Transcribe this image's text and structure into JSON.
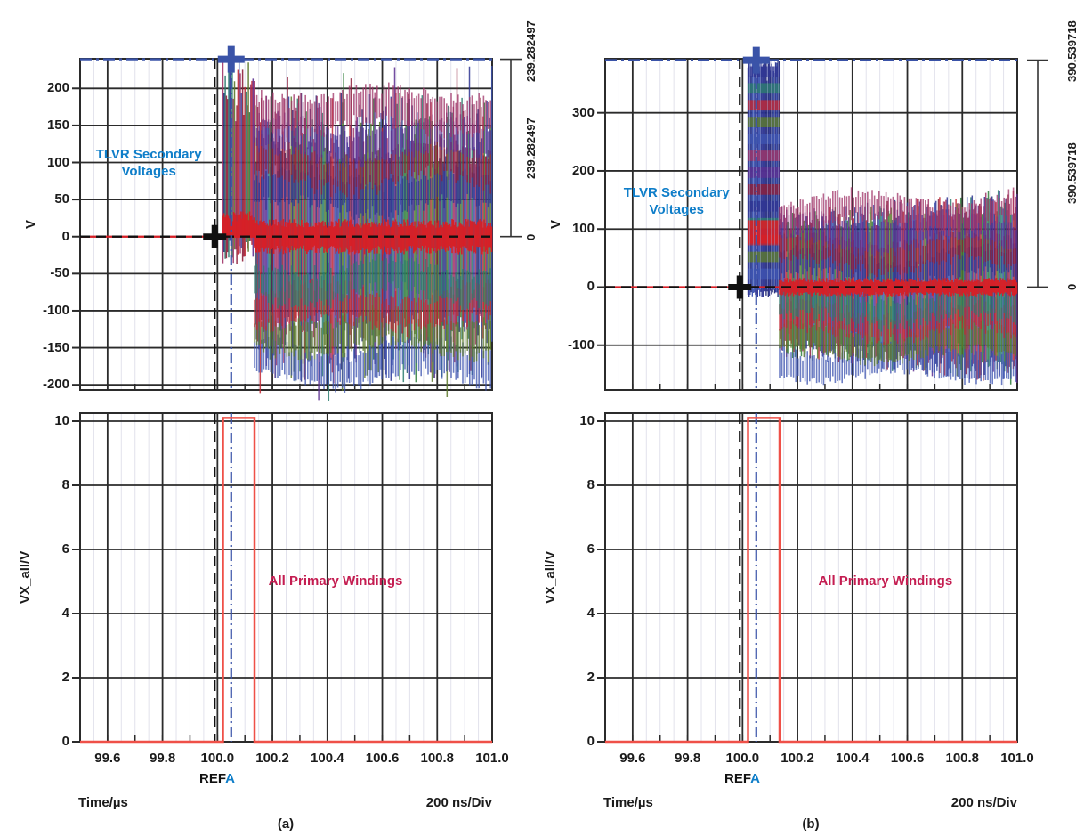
{
  "axis": {
    "time_label": "Time/µs",
    "div_label": "200 ns/Div",
    "ref_black": "REF",
    "ref_blue": "A",
    "x_tick_labels": [
      "99.6",
      "99.8",
      "100.0",
      "100.2",
      "100.4",
      "100.6",
      "100.8",
      "101.0"
    ],
    "x_tick_values": [
      99.6,
      99.8,
      100.0,
      100.2,
      100.4,
      100.6,
      100.8,
      101.0
    ]
  },
  "panels": {
    "a": "(a)",
    "b": "(b)"
  },
  "colors": {
    "blue_text": "#0f7ec9",
    "crimson_text": "#c41d51",
    "cursor_blue": "#3a53a8",
    "cursor_black": "#101010",
    "trace_red": "#d81f26",
    "pulse_red": "#ef5048",
    "grid_major": "#2b2b2b",
    "grid_minor": "#e2e2ec",
    "ruler": "#333333",
    "palette": [
      "#c22834",
      "#8f1f3a",
      "#2e3492",
      "#3d54b0",
      "#232a78",
      "#2c7d6f",
      "#5d7a2c",
      "#5c2f91",
      "#2f7d3a",
      "#a03468"
    ],
    "band_palette": [
      "#3d54b0",
      "#5d7a2c",
      "#c22834",
      "#2c7d6f",
      "#2e3492",
      "#8f1f3a",
      "#5c2f91",
      "#a03468"
    ]
  },
  "chart_data": [
    {
      "id": "a_top",
      "type": "line",
      "panel": "a",
      "ylabel": "V",
      "ytick_values": [
        200,
        150,
        100,
        50,
        0,
        -50,
        -100,
        -150,
        -200
      ],
      "ytick_labels": [
        "200",
        "150",
        "100",
        "50",
        "0",
        "-50",
        "-100",
        "-150",
        "-200"
      ],
      "ylim": [
        -207,
        240
      ],
      "xlim": [
        99.5,
        101.0
      ],
      "x_minor_step": 0.05,
      "annotation": {
        "text": "TLVR Secondary Voltages",
        "x": 99.75,
        "y": 100
      },
      "cursors": {
        "t_ref": 99.99,
        "t_cursor": 100.05,
        "y_ref": 0,
        "y_cursor": 239.282497
      },
      "measure": {
        "cursor_value": "239.282497",
        "delta": "239.282497",
        "ref": "0"
      },
      "waveform": {
        "seed": 7,
        "t_on": 100.02,
        "t_off": 100.135,
        "burst": {
          "top_min": 150,
          "top_max": 236,
          "bot_min": -38,
          "bot_max": -5,
          "red_lo": 0,
          "red_hi": 34
        },
        "steady": {
          "top_start": 198,
          "top_end": 192,
          "bot_start": -200,
          "bot_end": -195,
          "jitter": 0.5,
          "spike_top": 231,
          "spike_bot": -226
        },
        "bands": [
          -170,
          -130,
          -95,
          -60,
          60,
          95,
          130,
          170
        ],
        "zero_band": 24,
        "burst_style": "mottle"
      }
    },
    {
      "id": "b_top",
      "type": "line",
      "panel": "b",
      "ylabel": "V",
      "ytick_values": [
        300,
        200,
        100,
        0,
        -100
      ],
      "ytick_labels": [
        "300",
        "200",
        "100",
        "0",
        "-100"
      ],
      "ylim": [
        -177,
        393
      ],
      "xlim": [
        99.5,
        101.0
      ],
      "x_minor_step": 0.05,
      "annotation": {
        "text": "TLVR Secondary Voltages",
        "x": 99.76,
        "y": 148
      },
      "cursors": {
        "t_ref": 99.99,
        "t_cursor": 100.05,
        "y_ref": 0,
        "y_cursor": 390.539718
      },
      "measure": {
        "cursor_value": "390.539718",
        "delta": "390.539718",
        "ref": "0"
      },
      "waveform": {
        "seed": 13,
        "t_on": 100.02,
        "t_off": 100.135,
        "burst": {
          "top_min": 355,
          "top_max": 389,
          "bot_min": -18,
          "bot_max": -4,
          "red_lo": 75,
          "red_hi": 115
        },
        "steady": {
          "top_start": 130,
          "top_end": 172,
          "bot_start": -120,
          "bot_end": -172,
          "jitter": 0.28,
          "spike_top": 0,
          "spike_bot": 0
        },
        "bands": [
          -130,
          -95,
          -60,
          -35,
          35,
          60,
          95,
          130
        ],
        "zero_band": 16,
        "burst_style": "striped"
      }
    },
    {
      "id": "a_bot",
      "type": "line",
      "panel": "a",
      "ylabel": "VX_all/V",
      "ytick_values": [
        0,
        2,
        4,
        6,
        8,
        10
      ],
      "ytick_labels": [
        "0",
        "2",
        "4",
        "6",
        "8",
        "10"
      ],
      "ylim": [
        0,
        10.25
      ],
      "xlim": [
        99.5,
        101.0
      ],
      "x_minor_step": 0.05,
      "annotation": {
        "text": "All Primary Windings",
        "x": 100.43,
        "y": 5.0
      },
      "cursors": {
        "t_ref": 99.99,
        "t_cursor": 100.05
      },
      "pulse": {
        "t_rise": 100.02,
        "t_fall": 100.135,
        "level": 10.1,
        "base": 0
      }
    },
    {
      "id": "b_bot",
      "type": "line",
      "panel": "b",
      "ylabel": "VX_all/V",
      "ytick_values": [
        0,
        2,
        4,
        6,
        8,
        10
      ],
      "ytick_labels": [
        "0",
        "2",
        "4",
        "6",
        "8",
        "10"
      ],
      "ylim": [
        0,
        10.25
      ],
      "xlim": [
        99.5,
        101.0
      ],
      "x_minor_step": 0.05,
      "annotation": {
        "text": "All Primary Windings",
        "x": 100.52,
        "y": 5.0
      },
      "cursors": {
        "t_ref": 99.99,
        "t_cursor": 100.05
      },
      "pulse": {
        "t_rise": 100.02,
        "t_fall": 100.135,
        "level": 10.1,
        "base": 0
      }
    }
  ]
}
